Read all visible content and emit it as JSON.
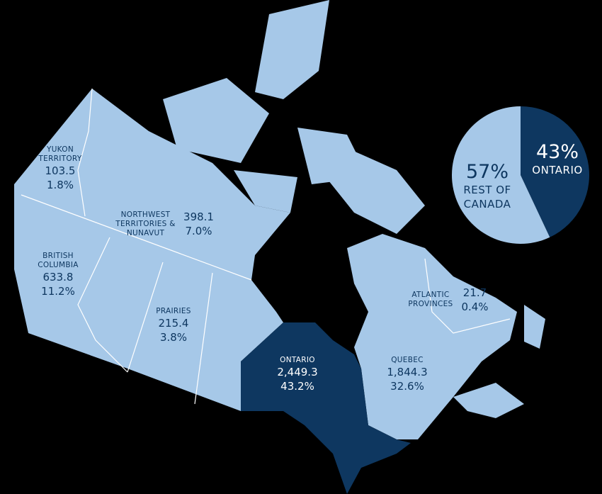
{
  "map": {
    "regions": [
      {
        "name": "YUKON TERRITORY",
        "value": "103.5",
        "share": "1.8%"
      },
      {
        "name": "NORTHWEST TERRITORIES & NUNAVUT",
        "value": "398.1",
        "share": "7.0%"
      },
      {
        "name": "BRITISH COLUMBIA",
        "value": "633.8",
        "share": "11.2%"
      },
      {
        "name": "PRAIRIES",
        "value": "215.4",
        "share": "3.8%"
      },
      {
        "name": "ONTARIO",
        "value": "2,449.3",
        "share": "43.2%"
      },
      {
        "name": "QUEBEC",
        "value": "1,844.3",
        "share": "32.6%"
      },
      {
        "name": "ATLANTIC PROVINCES",
        "value": "21.7",
        "share": "0.4%"
      }
    ]
  },
  "chart_data": {
    "type": "pie",
    "categories": [
      "ONTARIO",
      "REST OF CANADA"
    ],
    "values": [
      43,
      57
    ],
    "value_labels": [
      "43%",
      "57%"
    ],
    "colors": [
      "#0e3760",
      "#a6c8e8"
    ]
  }
}
